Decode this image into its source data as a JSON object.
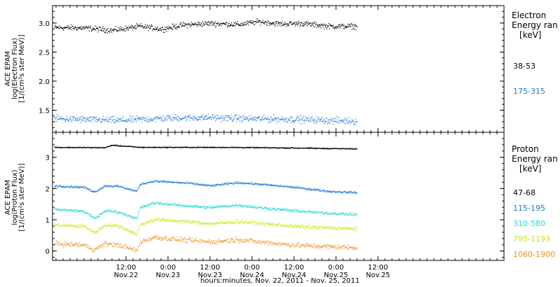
{
  "chart_data": {
    "type": "scatter",
    "x_axis": {
      "label": "hours:minutes, Nov. 22, 2011 - Nov. 25, 2011",
      "range_hours": [
        -9,
        120
      ],
      "ticks": [
        {
          "h": 12,
          "time": "12:00",
          "day": "Nov.22"
        },
        {
          "h": 24,
          "time": "0:00",
          "day": "Nov.23"
        },
        {
          "h": 36,
          "time": "12:00",
          "day": "Nov.23"
        },
        {
          "h": 48,
          "time": "0:00",
          "day": "Nov.24"
        },
        {
          "h": 60,
          "time": "12:00",
          "day": "Nov.24"
        },
        {
          "h": 72,
          "time": "0:00",
          "day": "Nov.25"
        },
        {
          "h": 84,
          "time": "12:00",
          "day": "Nov.25"
        }
      ],
      "data_end_hours": 78
    },
    "panels": [
      {
        "id": "electron",
        "ylabel_lines": [
          "ACE EPAM",
          "log(Electron Flux)",
          "[1/(cm²s ster MeV)]"
        ],
        "ylim": [
          1.12,
          3.3
        ],
        "yticks": [
          "1.5",
          "2.0",
          "2.5",
          "3.0"
        ],
        "ytick_values": [
          1.5,
          2.0,
          2.5,
          3.0
        ],
        "legend_title": "Electron",
        "legend_subtitle": "Energy ran",
        "legend_unit": "[keV]",
        "series": [
          {
            "name": "38-53",
            "color": "#000000",
            "base": 2.96,
            "noise": 0.04,
            "profile": [
              [
                -9,
                2.93
              ],
              [
                0,
                2.92
              ],
              [
                8,
                2.88
              ],
              [
                16,
                2.95
              ],
              [
                22,
                2.9
              ],
              [
                28,
                2.97
              ],
              [
                36,
                3.0
              ],
              [
                44,
                2.98
              ],
              [
                50,
                3.03
              ],
              [
                56,
                2.99
              ],
              [
                62,
                3.0
              ],
              [
                70,
                2.95
              ],
              [
                78,
                2.95
              ]
            ]
          },
          {
            "name": "175-315",
            "color": "#1e78d6",
            "base": 1.35,
            "noise": 0.05,
            "profile": [
              [
                -9,
                1.36
              ],
              [
                10,
                1.33
              ],
              [
                24,
                1.37
              ],
              [
                36,
                1.38
              ],
              [
                48,
                1.36
              ],
              [
                60,
                1.35
              ],
              [
                70,
                1.33
              ],
              [
                78,
                1.32
              ]
            ]
          }
        ]
      },
      {
        "id": "proton",
        "ylabel_lines": [
          "ACE EPAM",
          "log(Proton Flux)",
          "[1/(cm²s ster MeV)]"
        ],
        "ylim": [
          -0.3,
          3.8
        ],
        "yticks": [
          "0",
          "1",
          "2",
          "3"
        ],
        "ytick_values": [
          0,
          1,
          2,
          3
        ],
        "legend_title": "Proton",
        "legend_subtitle": "Energy ran",
        "legend_unit": "[keV]",
        "series": [
          {
            "name": "47-68",
            "color": "#000000",
            "noise": 0.015,
            "profile": [
              [
                -9,
                3.33
              ],
              [
                6,
                3.32
              ],
              [
                8,
                3.4
              ],
              [
                10,
                3.38
              ],
              [
                16,
                3.33
              ],
              [
                40,
                3.33
              ],
              [
                60,
                3.31
              ],
              [
                78,
                3.28
              ]
            ]
          },
          {
            "name": "115-195",
            "color": "#1e78d6",
            "noise": 0.03,
            "profile": [
              [
                -9,
                2.1
              ],
              [
                0,
                2.05
              ],
              [
                3,
                1.9
              ],
              [
                6,
                2.1
              ],
              [
                10,
                2.08
              ],
              [
                15,
                1.92
              ],
              [
                16,
                2.15
              ],
              [
                20,
                2.25
              ],
              [
                30,
                2.18
              ],
              [
                36,
                2.1
              ],
              [
                44,
                2.2
              ],
              [
                50,
                2.15
              ],
              [
                60,
                2.05
              ],
              [
                70,
                1.92
              ],
              [
                78,
                1.88
              ]
            ]
          },
          {
            "name": "310-580",
            "color": "#22d8d8",
            "noise": 0.04,
            "profile": [
              [
                -9,
                1.35
              ],
              [
                0,
                1.28
              ],
              [
                3,
                1.05
              ],
              [
                6,
                1.3
              ],
              [
                10,
                1.25
              ],
              [
                15,
                1.05
              ],
              [
                16,
                1.4
              ],
              [
                20,
                1.55
              ],
              [
                30,
                1.45
              ],
              [
                36,
                1.4
              ],
              [
                44,
                1.48
              ],
              [
                50,
                1.4
              ],
              [
                60,
                1.3
              ],
              [
                70,
                1.22
              ],
              [
                78,
                1.18
              ]
            ]
          },
          {
            "name": "795-1193",
            "color": "#c8e614",
            "noise": 0.05,
            "profile": [
              [
                -9,
                0.85
              ],
              [
                0,
                0.8
              ],
              [
                3,
                0.6
              ],
              [
                6,
                0.85
              ],
              [
                10,
                0.8
              ],
              [
                15,
                0.55
              ],
              [
                16,
                0.85
              ],
              [
                20,
                1.02
              ],
              [
                30,
                0.95
              ],
              [
                36,
                0.88
              ],
              [
                44,
                0.95
              ],
              [
                50,
                0.9
              ],
              [
                60,
                0.8
              ],
              [
                70,
                0.75
              ],
              [
                78,
                0.72
              ]
            ]
          },
          {
            "name": "1060-1900",
            "color": "#f0901e",
            "noise": 0.07,
            "profile": [
              [
                -9,
                0.25
              ],
              [
                0,
                0.2
              ],
              [
                3,
                0.05
              ],
              [
                6,
                0.25
              ],
              [
                10,
                0.2
              ],
              [
                15,
                0.02
              ],
              [
                16,
                0.3
              ],
              [
                20,
                0.45
              ],
              [
                30,
                0.35
              ],
              [
                36,
                0.3
              ],
              [
                44,
                0.38
              ],
              [
                50,
                0.3
              ],
              [
                60,
                0.2
              ],
              [
                70,
                0.15
              ],
              [
                78,
                0.12
              ]
            ]
          }
        ]
      }
    ]
  }
}
